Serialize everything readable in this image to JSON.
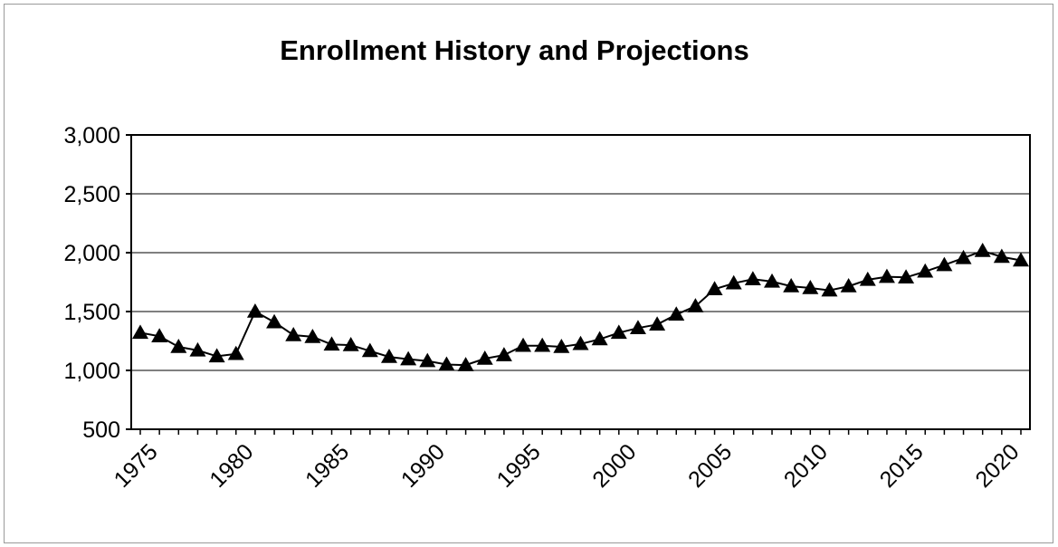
{
  "chart_data": {
    "type": "line",
    "title": "Enrollment History and Projections",
    "xlabel": "",
    "ylabel": "",
    "ylim": [
      500,
      3000
    ],
    "xlim": [
      1975,
      2021
    ],
    "y_ticks": [
      500,
      1000,
      1500,
      2000,
      2500,
      3000
    ],
    "y_tick_labels": [
      "500",
      "1,000",
      "1,500",
      "2,000",
      "2,500",
      "3,000"
    ],
    "x_ticks": [
      1975,
      1980,
      1985,
      1990,
      1995,
      2000,
      2005,
      2010,
      2015,
      2020
    ],
    "x_tick_labels": [
      "1975",
      "1980",
      "1985",
      "1990",
      "1995",
      "2000",
      "2005",
      "2010",
      "2015",
      "2020"
    ],
    "grid": "horizontal",
    "marker": "triangle",
    "line_color": "#000000",
    "series": [
      {
        "x": [
          1975,
          1976,
          1977,
          1978,
          1979,
          1980,
          1981,
          1982,
          1983,
          1984,
          1985,
          1986,
          1987,
          1988,
          1989,
          1990,
          1991,
          1992,
          1993,
          1994,
          1995,
          1996,
          1997,
          1998,
          1999,
          2000,
          2001,
          2002,
          2003,
          2004,
          2005,
          2006,
          2007,
          2008,
          2009,
          2010,
          2011,
          2012,
          2013,
          2014,
          2015,
          2016,
          2017,
          2018,
          2019,
          2020,
          2021
        ],
        "values": [
          1320,
          1290,
          1200,
          1170,
          1120,
          1140,
          1500,
          1410,
          1300,
          1285,
          1220,
          1215,
          1165,
          1115,
          1095,
          1080,
          1050,
          1045,
          1100,
          1130,
          1210,
          1210,
          1200,
          1225,
          1265,
          1320,
          1360,
          1390,
          1475,
          1545,
          1690,
          1740,
          1775,
          1755,
          1715,
          1700,
          1680,
          1715,
          1770,
          1795,
          1790,
          1840,
          1895,
          1955,
          2015,
          1965,
          1935
        ]
      }
    ]
  }
}
